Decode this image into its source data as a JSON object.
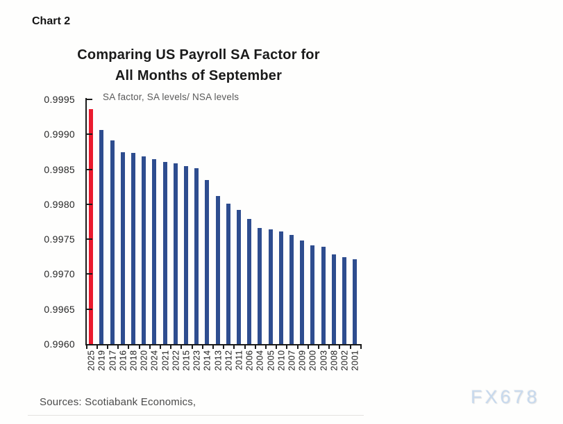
{
  "page": {
    "chart_label": "Chart 2",
    "sources": "Sources: Scotiabank Economics,",
    "watermark": "FX678"
  },
  "chart_data": {
    "type": "bar",
    "title": "Comparing US Payroll SA Factor for All Months of September",
    "title_lines": [
      "Comparing US Payroll SA Factor for",
      "All Months of September"
    ],
    "subtitle": "SA factor, SA levels/ NSA levels",
    "categories": [
      "2025",
      "2019",
      "2017",
      "2016",
      "2018",
      "2020",
      "2024",
      "2021",
      "2022",
      "2015",
      "2023",
      "2014",
      "2013",
      "2012",
      "2011",
      "2006",
      "2004",
      "2005",
      "2010",
      "2007",
      "2009",
      "2000",
      "2003",
      "2008",
      "2002",
      "2001"
    ],
    "values": [
      0.99936,
      0.99906,
      0.99891,
      0.99874,
      0.99873,
      0.99868,
      0.99864,
      0.99861,
      0.99859,
      0.99855,
      0.99852,
      0.99835,
      0.99812,
      0.99801,
      0.99792,
      0.99779,
      0.99766,
      0.99764,
      0.99761,
      0.99756,
      0.99748,
      0.99741,
      0.99739,
      0.99728,
      0.99724,
      0.99721
    ],
    "highlight_category": "2025",
    "y_tick_labels": [
      "0.9995",
      "0.9990",
      "0.9985",
      "0.9980",
      "0.9975",
      "0.9970",
      "0.9965",
      "0.9960"
    ],
    "ylim": [
      0.996,
      0.9995
    ],
    "xlabel": "",
    "ylabel": "",
    "grid": false,
    "legend_position": "none",
    "colors": {
      "bar": "#2e4d8f",
      "highlight_bar": "#ea1b2e",
      "axis": "#1a1a1a"
    }
  }
}
